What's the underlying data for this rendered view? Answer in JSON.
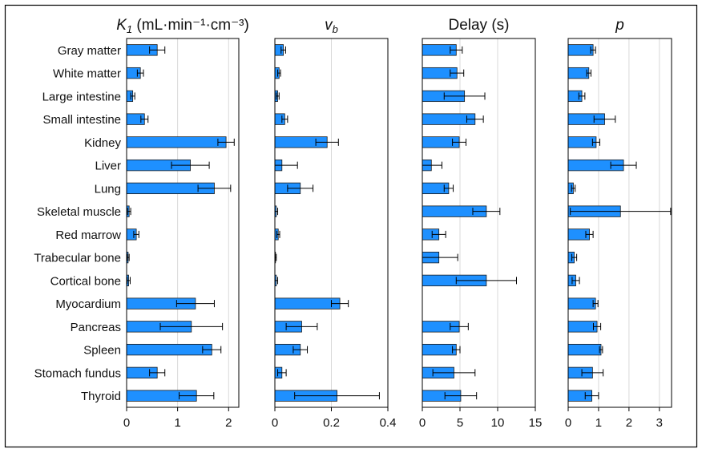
{
  "colors": {
    "bar_fill": "#1e90ff",
    "bar_stroke": "#1a1a1a",
    "grid": "#d9d9d9",
    "frame": "#000000"
  },
  "categories": [
    "Gray matter",
    "White matter",
    "Large intestine",
    "Small intestine",
    "Kidney",
    "Liver",
    "Lung",
    "Skeletal muscle",
    "Red marrow",
    "Trabecular bone",
    "Cortical bone",
    "Myocardium",
    "Pancreas",
    "Spleen",
    "Stomach fundus",
    "Thyroid"
  ],
  "chart_data": [
    {
      "type": "bar",
      "orientation": "horizontal",
      "title": "K1 (mL·min⁻¹·cm⁻³)",
      "title_parts": {
        "symbol": "K",
        "subscript": "1",
        "unit": " (mL·min⁻¹·cm⁻³)"
      },
      "xlim": [
        0,
        2.2
      ],
      "xticks": [
        0,
        1,
        2
      ],
      "xtick_labels": [
        "0",
        "1",
        "2"
      ],
      "grid": true,
      "values": [
        0.6,
        0.27,
        0.12,
        0.35,
        1.95,
        1.25,
        1.72,
        0.05,
        0.19,
        0.03,
        0.04,
        1.35,
        1.27,
        1.67,
        0.6,
        1.37
      ],
      "errors": [
        0.15,
        0.06,
        0.04,
        0.07,
        0.16,
        0.37,
        0.32,
        0.03,
        0.05,
        0.02,
        0.03,
        0.37,
        0.61,
        0.18,
        0.15,
        0.34
      ]
    },
    {
      "type": "bar",
      "orientation": "horizontal",
      "title": "vb",
      "title_parts": {
        "symbol": "v",
        "subscript": "b",
        "unit": ""
      },
      "xlim": [
        0,
        0.4
      ],
      "xticks": [
        0,
        0.2,
        0.4
      ],
      "xtick_labels": [
        "0",
        "0.2",
        "0.4"
      ],
      "grid": true,
      "values": [
        0.03,
        0.015,
        0.01,
        0.035,
        0.185,
        0.025,
        0.09,
        0.005,
        0.012,
        0.002,
        0.005,
        0.23,
        0.095,
        0.09,
        0.025,
        0.22
      ],
      "errors": [
        0.008,
        0.005,
        0.005,
        0.01,
        0.04,
        0.055,
        0.045,
        0.005,
        0.005,
        0.003,
        0.005,
        0.03,
        0.055,
        0.025,
        0.015,
        0.15
      ]
    },
    {
      "type": "bar",
      "orientation": "horizontal",
      "title": "Delay (s)",
      "title_parts": {
        "symbol": "",
        "subscript": "",
        "unit": "Delay (s)"
      },
      "xlim": [
        0,
        15
      ],
      "xticks": [
        0,
        5,
        10,
        15
      ],
      "xtick_labels": [
        "0",
        "5",
        "10",
        "15"
      ],
      "grid": true,
      "values": [
        4.5,
        4.6,
        5.6,
        7.0,
        4.9,
        1.2,
        3.5,
        8.5,
        2.2,
        2.2,
        8.5,
        null,
        4.9,
        4.5,
        4.2,
        5.1
      ],
      "errors": [
        0.8,
        0.9,
        2.7,
        1.1,
        0.9,
        1.4,
        0.6,
        1.8,
        0.9,
        2.5,
        4.0,
        null,
        1.2,
        0.5,
        2.8,
        2.1
      ]
    },
    {
      "type": "bar",
      "orientation": "horizontal",
      "title": "p",
      "title_parts": {
        "symbol": "p",
        "subscript": "",
        "unit": ""
      },
      "xlim": [
        0,
        3.4
      ],
      "xticks": [
        0,
        1,
        2,
        3
      ],
      "xtick_labels": [
        "0",
        "1",
        "2",
        "3"
      ],
      "grid": true,
      "values": [
        0.82,
        0.68,
        0.45,
        1.2,
        0.92,
        1.82,
        0.17,
        1.72,
        0.7,
        0.2,
        0.25,
        0.9,
        0.95,
        1.08,
        0.8,
        0.78
      ],
      "errors": [
        0.08,
        0.07,
        0.1,
        0.35,
        0.12,
        0.42,
        0.06,
        1.65,
        0.12,
        0.08,
        0.12,
        0.08,
        0.12,
        0.05,
        0.35,
        0.22
      ]
    }
  ]
}
